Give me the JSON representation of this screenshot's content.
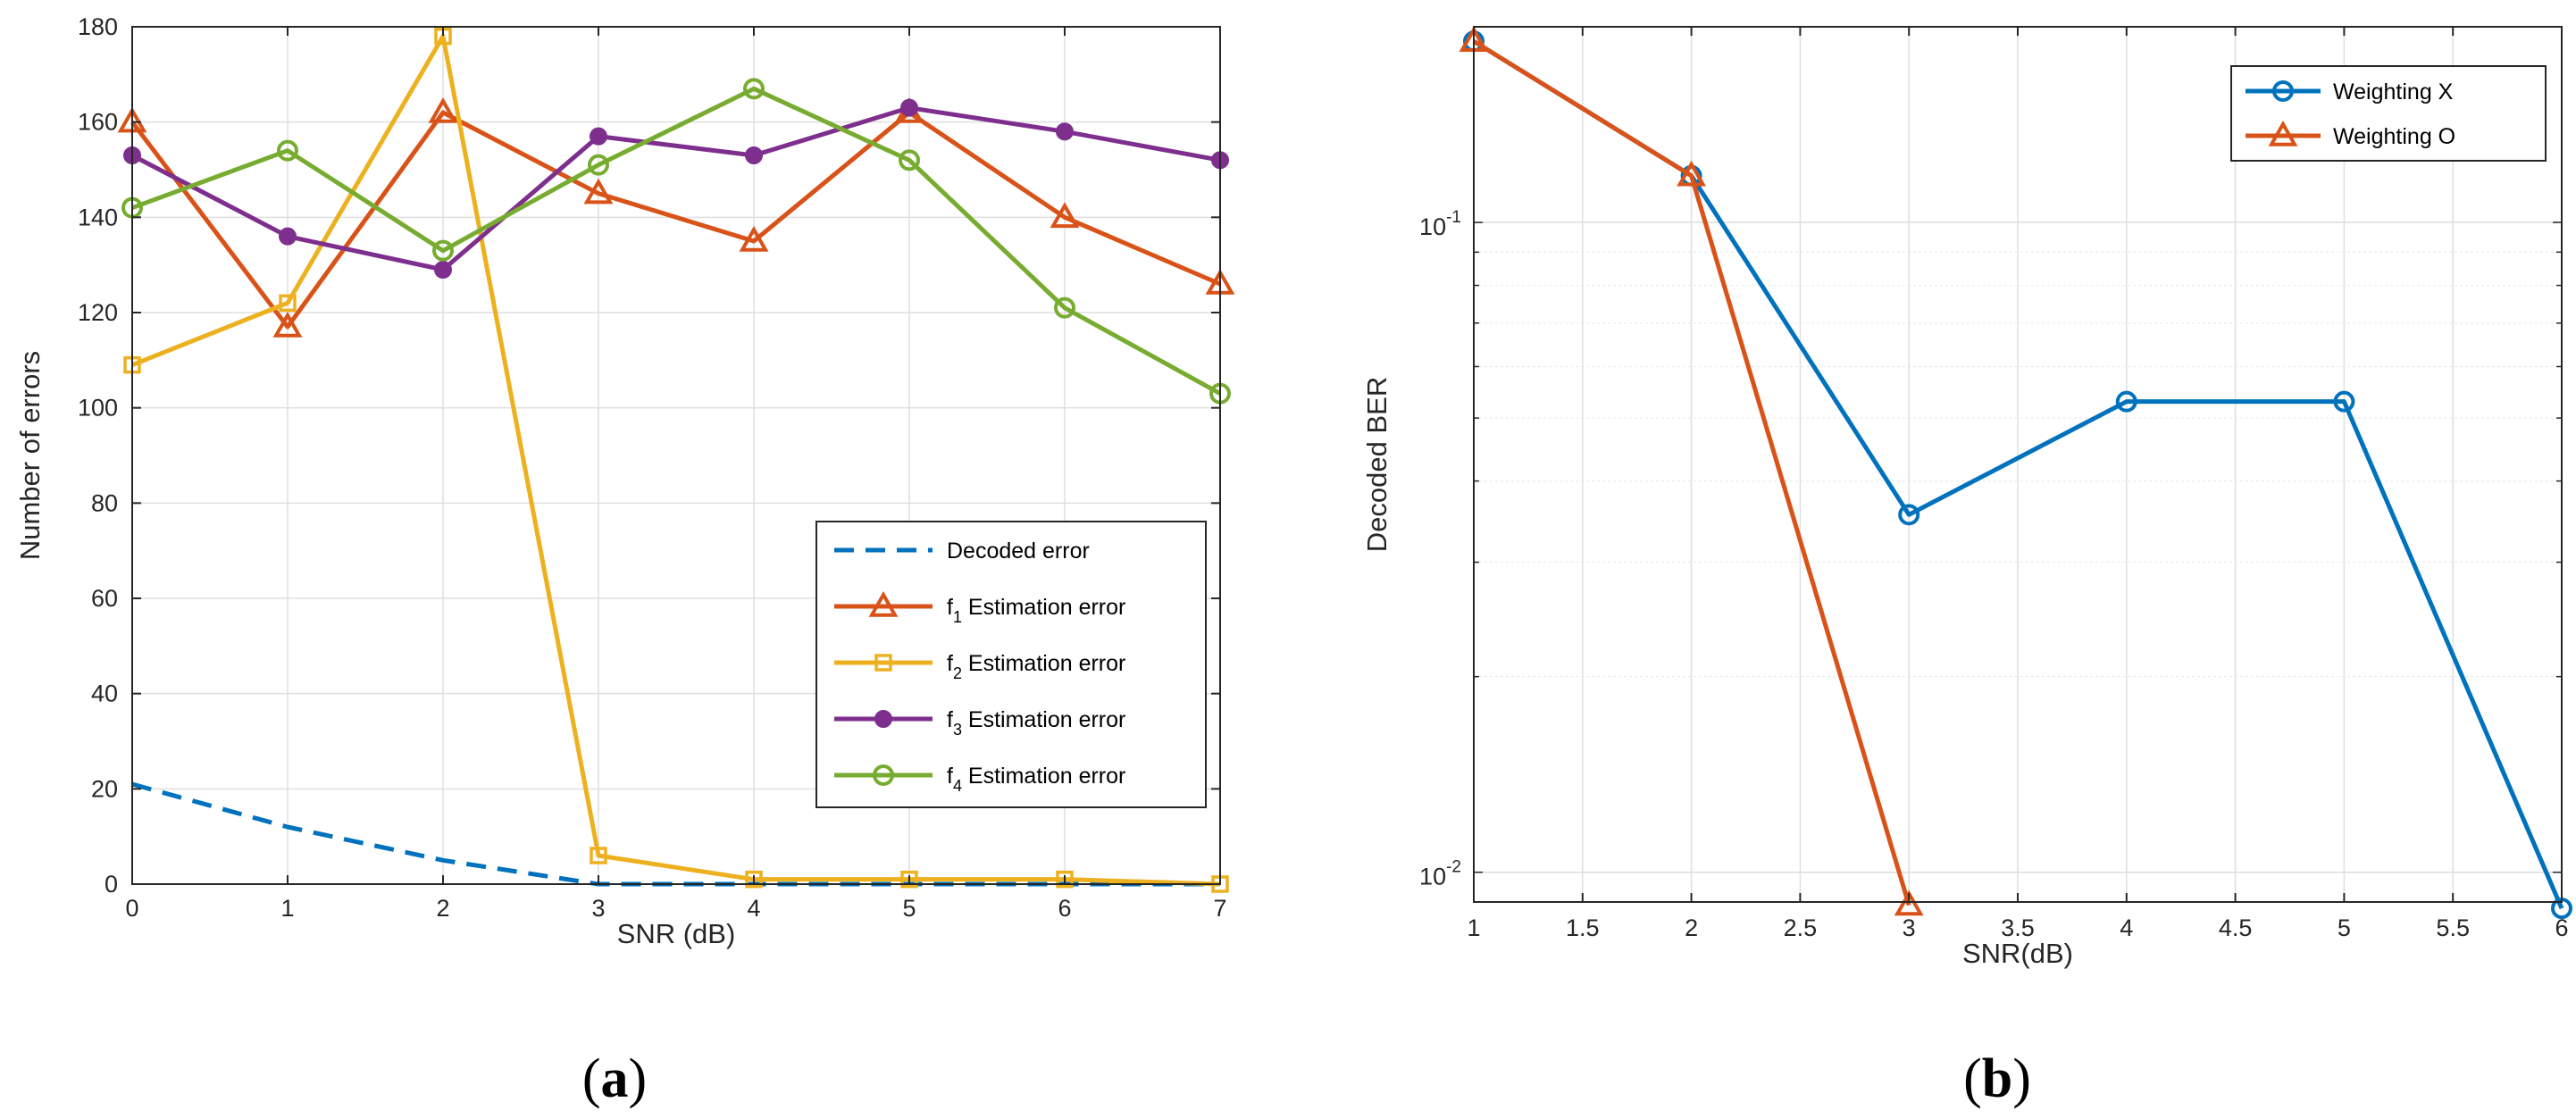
{
  "chart_data": [
    {
      "type": "line",
      "panel": "a",
      "caption_letter": "a",
      "xlabel": "SNR (dB)",
      "ylabel": "Number of errors",
      "xlim": [
        0,
        7
      ],
      "ylim": [
        0,
        180
      ],
      "xticks": [
        0,
        1,
        2,
        3,
        4,
        5,
        6,
        7
      ],
      "yticks": [
        0,
        20,
        40,
        60,
        80,
        100,
        120,
        140,
        160,
        180
      ],
      "grid": true,
      "legend_position": "lower-right",
      "series": [
        {
          "name": "Decoded error",
          "legend_prefix": "",
          "legend_sub": "",
          "legend_text": "Decoded error",
          "color": "#0072BD",
          "marker": "none",
          "dash": "dashed",
          "x": [
            0,
            1,
            2,
            3,
            4,
            5,
            6,
            7
          ],
          "values": [
            21,
            12,
            5,
            0,
            0,
            0,
            0,
            0
          ]
        },
        {
          "name": "f1 Estimation error",
          "legend_prefix": "f",
          "legend_sub": "1",
          "legend_text": " Estimation error",
          "color": "#D95319",
          "marker": "triangle",
          "dash": "solid",
          "x": [
            0,
            1,
            2,
            3,
            4,
            5,
            6,
            7
          ],
          "values": [
            160,
            117,
            162,
            145,
            135,
            162,
            140,
            126
          ]
        },
        {
          "name": "f2 Estimation error",
          "legend_prefix": "f",
          "legend_sub": "2",
          "legend_text": " Estimation error",
          "color": "#EDB120",
          "marker": "square",
          "dash": "solid",
          "x": [
            0,
            1,
            2,
            3,
            4,
            5,
            6,
            7
          ],
          "values": [
            109,
            122,
            178,
            6,
            1,
            1,
            1,
            0
          ]
        },
        {
          "name": "f3 Estimation error",
          "legend_prefix": "f",
          "legend_sub": "3",
          "legend_text": " Estimation error",
          "color": "#7E2F8E",
          "marker": "dot",
          "dash": "solid",
          "x": [
            0,
            1,
            2,
            3,
            4,
            5,
            6,
            7
          ],
          "values": [
            153,
            136,
            129,
            157,
            153,
            163,
            158,
            152
          ]
        },
        {
          "name": "f4 Estimation error",
          "legend_prefix": "f",
          "legend_sub": "4",
          "legend_text": " Estimation error",
          "color": "#77AC30",
          "marker": "circle",
          "dash": "solid",
          "x": [
            0,
            1,
            2,
            3,
            4,
            5,
            6,
            7
          ],
          "values": [
            142,
            154,
            133,
            151,
            167,
            152,
            121,
            103
          ]
        }
      ]
    },
    {
      "type": "line",
      "panel": "b",
      "caption_letter": "b",
      "xlabel": "SNR(dB)",
      "ylabel": "Decoded BER",
      "yscale": "log",
      "xlim": [
        1,
        6
      ],
      "ylim": [
        0.009,
        0.2
      ],
      "xticks": [
        1,
        1.5,
        2,
        2.5,
        3,
        3.5,
        4,
        4.5,
        5,
        5.5,
        6
      ],
      "ytick_values": [
        0.01,
        0.1
      ],
      "ytick_labels": [
        {
          "base": "10",
          "exp": "-2"
        },
        {
          "base": "10",
          "exp": "-1"
        }
      ],
      "grid": true,
      "legend_position": "top-right",
      "series": [
        {
          "name": "Weighting X",
          "legend_text": "Weighting X",
          "color": "#0072BD",
          "marker": "circle",
          "dash": "solid",
          "x": [
            1,
            2,
            3,
            4,
            5,
            6
          ],
          "values": [
            0.19,
            0.118,
            0.0355,
            0.053,
            0.053,
            0.0088
          ]
        },
        {
          "name": "Weighting O",
          "legend_text": "Weighting O",
          "color": "#D95319",
          "marker": "triangle",
          "dash": "solid",
          "x": [
            1,
            2,
            3
          ],
          "values": [
            0.19,
            0.118,
            0.0089
          ]
        }
      ]
    }
  ]
}
